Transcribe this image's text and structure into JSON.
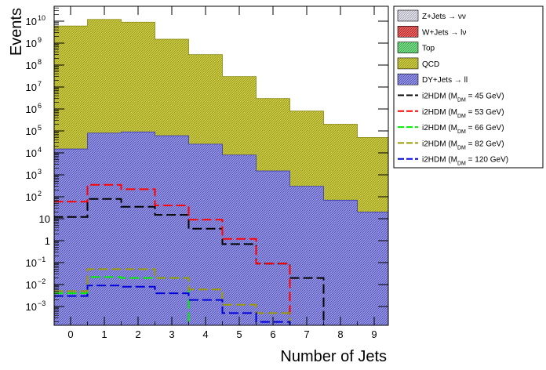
{
  "chart_data": {
    "type": "histogram",
    "title": "",
    "xlabel": "Number of Jets",
    "ylabel": "Events",
    "xlim": [
      -0.5,
      9.5
    ],
    "ylim": [
      0.0002,
      50000000000
    ],
    "yscale": "log",
    "x_tick_labels": [
      "0",
      "1",
      "2",
      "3",
      "4",
      "5",
      "6",
      "7",
      "8",
      "9"
    ],
    "y_tick_labels": [
      {
        "value": 0.001,
        "base": "10",
        "exp": "−3"
      },
      {
        "value": 0.01,
        "base": "10",
        "exp": "−2"
      },
      {
        "value": 0.1,
        "base": "10",
        "exp": "−1"
      },
      {
        "value": 1,
        "base": "1",
        "exp": ""
      },
      {
        "value": 10,
        "base": "10",
        "exp": ""
      },
      {
        "value": 100,
        "base": "10",
        "exp": "2"
      },
      {
        "value": 1000,
        "base": "10",
        "exp": "3"
      },
      {
        "value": 10000,
        "base": "10",
        "exp": "4"
      },
      {
        "value": 100000,
        "base": "10",
        "exp": "5"
      },
      {
        "value": 1000000,
        "base": "10",
        "exp": "6"
      },
      {
        "value": 10000000,
        "base": "10",
        "exp": "7"
      },
      {
        "value": 100000000,
        "base": "10",
        "exp": "8"
      },
      {
        "value": 1000000000,
        "base": "10",
        "exp": "9"
      },
      {
        "value": 10000000000,
        "base": "10",
        "exp": "10"
      }
    ],
    "bins": [
      0,
      1,
      2,
      3,
      4,
      5,
      6,
      7,
      8,
      9
    ],
    "stack": [
      {
        "id": "dy",
        "name": "DY+Jets → ll",
        "fill": "#7b7bd6",
        "hatch": true,
        "values": [
          15000,
          80000,
          90000,
          60000,
          25000,
          8000,
          1500,
          300,
          70,
          20
        ]
      },
      {
        "id": "qcd",
        "name": "QCD",
        "fill": "#c4c43c",
        "hatch": true,
        "values": [
          6000000000,
          12000000000,
          9000000000,
          1500000000,
          300000000,
          30000000,
          3000000,
          800000,
          200000,
          50000
        ]
      }
    ],
    "background_only_legend": [
      {
        "id": "znn",
        "name": "Z+Jets → νν",
        "fill": "#d8d8e4"
      },
      {
        "id": "wln",
        "name": "W+Jets → lν",
        "fill": "#e05050"
      },
      {
        "id": "top",
        "name": "Top",
        "fill": "#60d070"
      }
    ],
    "signals": [
      {
        "id": "s45",
        "label_pre": "i2HDM (M",
        "label_sub": "DM",
        "label_post": " =  45 GeV)",
        "color": "#000000",
        "values": [
          12,
          80,
          35,
          15,
          3.5,
          0.7,
          0.09,
          0.02,
          null,
          null
        ]
      },
      {
        "id": "s53",
        "label_pre": "i2HDM (M",
        "label_sub": "DM",
        "label_post": " =  53 GeV)",
        "color": "#ff0000",
        "values": [
          60,
          350,
          220,
          40,
          9,
          1.2,
          0.09,
          null,
          null,
          null
        ]
      },
      {
        "id": "s66",
        "label_pre": "i2HDM (M",
        "label_sub": "DM",
        "label_post": " =  66 GeV)",
        "color": "#00ee00",
        "values": [
          0.004,
          0.022,
          0.02,
          0.02,
          null,
          null,
          null,
          null,
          null,
          null
        ]
      },
      {
        "id": "s82",
        "label_pre": "i2HDM (M",
        "label_sub": "DM",
        "label_post": " =  82 GeV)",
        "color": "#999900",
        "values": [
          0.005,
          0.05,
          0.05,
          0.02,
          0.006,
          0.0012,
          0.0005,
          null,
          null,
          null
        ]
      },
      {
        "id": "s120",
        "label_pre": "i2HDM (M",
        "label_sub": "DM",
        "label_post": " = 120 GeV)",
        "color": "#0000dd",
        "values": [
          0.003,
          0.009,
          0.008,
          0.004,
          0.002,
          0.0005,
          0.0002,
          null,
          null,
          null
        ]
      }
    ]
  }
}
